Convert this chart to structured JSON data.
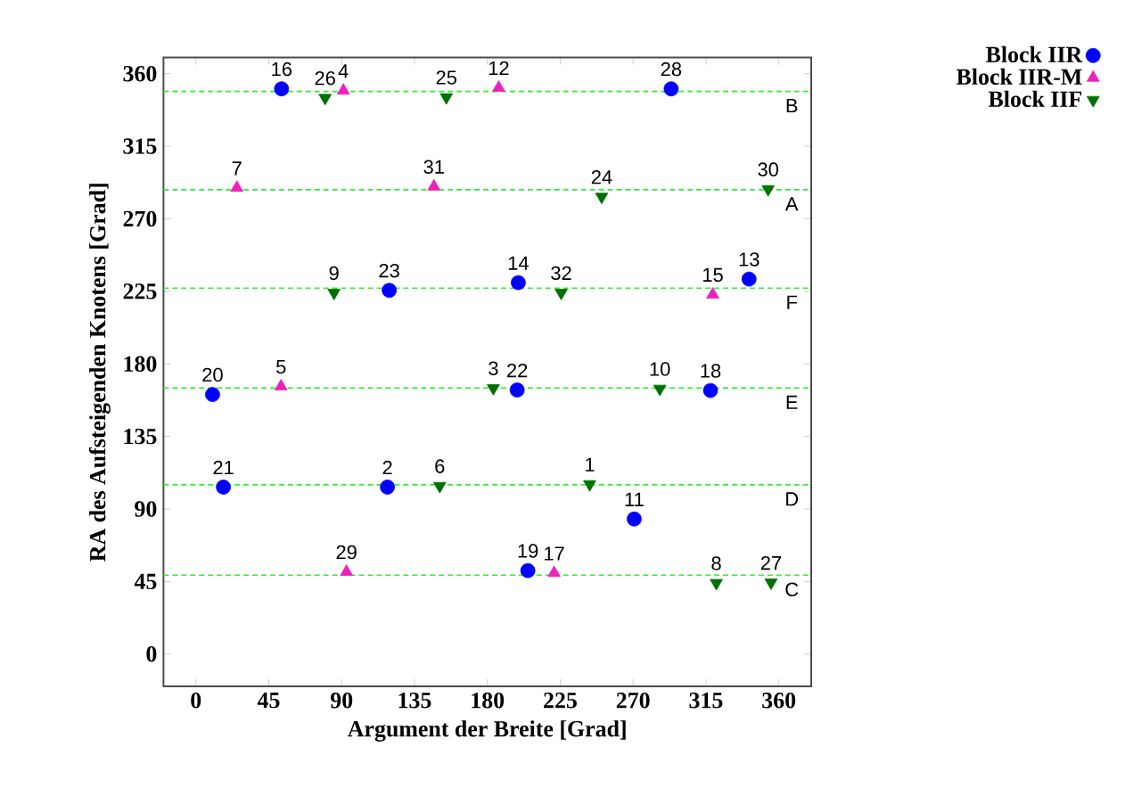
{
  "chart_data": {
    "type": "scatter",
    "xlabel": "Argument der Breite [Grad]",
    "ylabel": "RA des Aufsteigenden Knotens [Grad]",
    "xlim": [
      -20,
      380
    ],
    "ylim": [
      -20,
      370
    ],
    "xticks": [
      0,
      45,
      90,
      135,
      180,
      225,
      270,
      315,
      360
    ],
    "yticks": [
      0,
      45,
      90,
      135,
      180,
      225,
      270,
      315,
      360
    ],
    "legend": "top right",
    "series": [
      {
        "name": "Block IIR",
        "color": "#0000ff",
        "marker": "circle",
        "x": [
          52.9,
          293.5,
          119.4,
          199.1,
          341.6,
          10.3,
          198.4,
          317.8,
          17,
          118.3,
          270.7,
          205
        ],
        "values": [
          350.6,
          350.6,
          225.6,
          230.4,
          232.6,
          161,
          163.8,
          163.5,
          103.6,
          103.6,
          83.8,
          51.8
        ]
      },
      {
        "name": "Block IIR-M",
        "color": "#ee22bb",
        "marker": "triangle",
        "x": [
          91.1,
          187,
          25.3,
          147,
          319.2,
          52.6,
          93,
          221.2
        ],
        "values": [
          349.5,
          351.3,
          289.2,
          290,
          223,
          166,
          51,
          50.3
        ]
      },
      {
        "name": "Block IIF",
        "color": "#007000",
        "marker": "triangle-down",
        "x": [
          79.8,
          154.7,
          250.6,
          353.4,
          85.3,
          225.6,
          183.7,
          286.5,
          150.6,
          243.2,
          321.4,
          355.2
        ],
        "values": [
          345,
          345.4,
          283.7,
          288.4,
          224.1,
          224.1,
          165,
          164.6,
          104.3,
          105.4,
          44.1,
          44.4
        ]
      }
    ],
    "ref_lines": [
      {
        "axis": "y",
        "value": 349,
        "label": "B",
        "color": "#33ee33",
        "line_style": "dashed"
      },
      {
        "axis": "y",
        "value": 288,
        "label": "A",
        "color": "#33ee33",
        "line_style": "dashed"
      },
      {
        "axis": "y",
        "value": 227,
        "label": "F",
        "color": "#33ee33",
        "line_style": "dashed"
      },
      {
        "axis": "y",
        "value": 165,
        "label": "E",
        "color": "#33ee33",
        "line_style": "dashed"
      },
      {
        "axis": "y",
        "value": 105,
        "label": "D",
        "color": "#33ee33",
        "line_style": "dashed"
      },
      {
        "axis": "y",
        "value": 49,
        "label": "C",
        "color": "#33ee33",
        "line_style": "dashed"
      }
    ],
    "annotations": [
      {
        "text": "16",
        "x": 52.9,
        "y": 350.6
      },
      {
        "text": "28",
        "x": 293.5,
        "y": 350.6
      },
      {
        "text": "23",
        "x": 119.4,
        "y": 225.6
      },
      {
        "text": "14",
        "x": 199.1,
        "y": 230.4
      },
      {
        "text": "13",
        "x": 341.6,
        "y": 232.6
      },
      {
        "text": "20",
        "x": 10.3,
        "y": 161
      },
      {
        "text": "22",
        "x": 198.4,
        "y": 163.8
      },
      {
        "text": "18",
        "x": 317.8,
        "y": 163.5
      },
      {
        "text": "21",
        "x": 17,
        "y": 103.6
      },
      {
        "text": "2",
        "x": 118.3,
        "y": 103.6
      },
      {
        "text": "11",
        "x": 270.7,
        "y": 83.8
      },
      {
        "text": "19",
        "x": 205,
        "y": 51.8
      },
      {
        "text": "4",
        "x": 91.1,
        "y": 349.5
      },
      {
        "text": "12",
        "x": 187,
        "y": 351.3
      },
      {
        "text": "7",
        "x": 25.3,
        "y": 289.2
      },
      {
        "text": "31",
        "x": 147,
        "y": 290
      },
      {
        "text": "15",
        "x": 319.2,
        "y": 223
      },
      {
        "text": "5",
        "x": 52.6,
        "y": 166
      },
      {
        "text": "29",
        "x": 93,
        "y": 51
      },
      {
        "text": "17",
        "x": 221.2,
        "y": 50.3
      },
      {
        "text": "26",
        "x": 79.8,
        "y": 345
      },
      {
        "text": "25",
        "x": 154.7,
        "y": 345.4
      },
      {
        "text": "24",
        "x": 250.6,
        "y": 283.7
      },
      {
        "text": "30",
        "x": 353.4,
        "y": 288.4
      },
      {
        "text": "9",
        "x": 85.3,
        "y": 224.1
      },
      {
        "text": "32",
        "x": 225.6,
        "y": 224.1
      },
      {
        "text": "3",
        "x": 183.7,
        "y": 165
      },
      {
        "text": "10",
        "x": 286.5,
        "y": 164.6
      },
      {
        "text": "6",
        "x": 150.6,
        "y": 104.3
      },
      {
        "text": "1",
        "x": 243.2,
        "y": 105.4
      },
      {
        "text": "8",
        "x": 321.4,
        "y": 44.1
      },
      {
        "text": "27",
        "x": 355.2,
        "y": 44.4
      }
    ]
  }
}
